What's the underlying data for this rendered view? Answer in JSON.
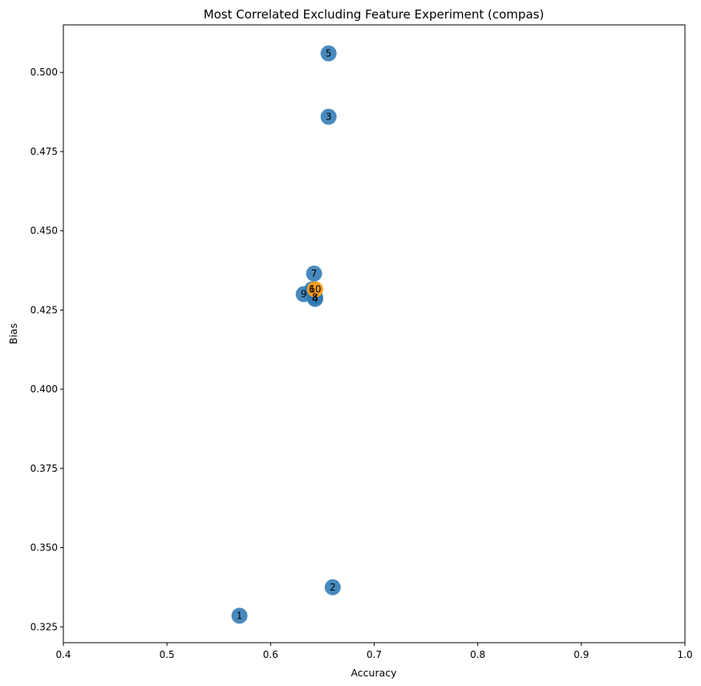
{
  "chart_data": {
    "type": "scatter",
    "title": "Most Correlated Excluding Feature Experiment (compas)",
    "xlabel": "Accuracy",
    "ylabel": "Bias",
    "xlim": [
      0.4,
      1.0
    ],
    "ylim": [
      0.32,
      0.515
    ],
    "xticks": [
      "0.4",
      "0.5",
      "0.6",
      "0.7",
      "0.8",
      "0.9",
      "1.0"
    ],
    "yticks": [
      "0.325",
      "0.350",
      "0.375",
      "0.400",
      "0.425",
      "0.450",
      "0.475",
      "0.500"
    ],
    "grid": false,
    "legend": false,
    "colors": {
      "default_point": "#2f7ab5",
      "highlight_point": "#ff9f1a"
    },
    "points": [
      {
        "label": "1",
        "x": 0.57,
        "y": 0.3285
      },
      {
        "label": "2",
        "x": 0.66,
        "y": 0.3375
      },
      {
        "label": "3",
        "x": 0.656,
        "y": 0.486
      },
      {
        "label": "4",
        "x": 0.643,
        "y": 0.4285
      },
      {
        "label": "5",
        "x": 0.656,
        "y": 0.506
      },
      {
        "label": "6",
        "x": 0.64,
        "y": 0.4315
      },
      {
        "label": "7",
        "x": 0.642,
        "y": 0.4365
      },
      {
        "label": "8",
        "x": 0.643,
        "y": 0.429
      },
      {
        "label": "9",
        "x": 0.632,
        "y": 0.43
      },
      {
        "label": "10",
        "x": 0.643,
        "y": 0.4315,
        "highlight": true
      }
    ]
  }
}
